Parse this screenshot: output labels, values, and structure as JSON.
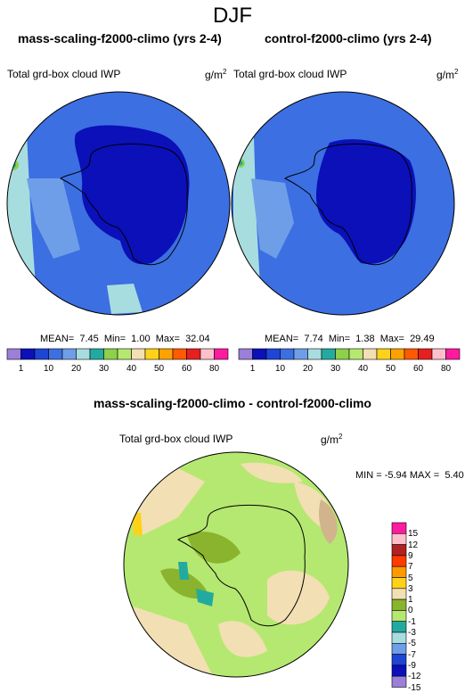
{
  "figure": {
    "season": "DJF"
  },
  "panels": [
    {
      "title": "mass-scaling-f2000-climo (yrs 2-4)",
      "variable": "Total grd-box cloud IWP",
      "units": "g/m",
      "units_exp": "2",
      "stats": {
        "mean_label": "MEAN=",
        "mean": "7.45",
        "min_label": "Min=",
        "min": "1.00",
        "max_label": "Max=",
        "max": "32.04"
      }
    },
    {
      "title": "control-f2000-climo (yrs 2-4)",
      "variable": "Total grd-box cloud IWP",
      "units": "g/m",
      "units_exp": "2",
      "stats": {
        "mean_label": "MEAN=",
        "mean": "7.74",
        "min_label": "Min=",
        "min": "1.38",
        "max_label": "Max=",
        "max": "29.49"
      }
    }
  ],
  "colorbar_abs": {
    "colors": [
      "#9b7fd9",
      "#0b10b8",
      "#1d45d6",
      "#3c6fe2",
      "#6f9ee8",
      "#a8dde0",
      "#22aaa0",
      "#8dd04a",
      "#b5e870",
      "#f2dfb3",
      "#ffd21a",
      "#ffa200",
      "#ff5a00",
      "#e62020",
      "#ffc0cb",
      "#ff1aa0"
    ],
    "labels": [
      "1",
      "10",
      "20",
      "30",
      "40",
      "50",
      "60",
      "80"
    ]
  },
  "diff_panel": {
    "title": "mass-scaling-f2000-climo - control-f2000-climo",
    "variable": "Total grd-box cloud IWP",
    "units": "g/m",
    "units_exp": "2",
    "stats": {
      "min_label": "MIN =",
      "min": "-5.94",
      "max_label": "MAX =",
      "max": "5.40"
    }
  },
  "colorbar_diff": {
    "colors": [
      "#ff1aa0",
      "#ffc0cb",
      "#b22222",
      "#ff3c00",
      "#ff9900",
      "#ffd21a",
      "#f2dfb3",
      "#8ab32e",
      "#b5e870",
      "#22aaa0",
      "#a8dde0",
      "#6f9ee8",
      "#1d45d6",
      "#0b10b8",
      "#9b7fd9"
    ],
    "labels": [
      "15",
      "12",
      "9",
      "7",
      "5",
      "3",
      "1",
      "0",
      "-1",
      "-3",
      "-5",
      "-7",
      "-9",
      "-12",
      "-15"
    ]
  }
}
